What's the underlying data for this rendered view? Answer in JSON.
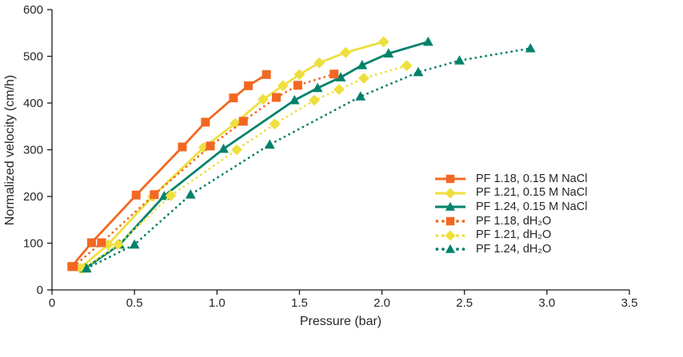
{
  "figure": {
    "background": "#ffffff",
    "text_color": "#262626",
    "axis_color": "#1a1a1a"
  },
  "chart_data": {
    "type": "line",
    "title": "",
    "xlabel": "Pressure (bar)",
    "ylabel": "Normalized velocity (cm/h)",
    "xlim": [
      0,
      3.5
    ],
    "ylim": [
      0,
      600
    ],
    "grid": false,
    "legend_position": "right-center",
    "x_ticks": {
      "values": [
        0,
        0.5,
        1.0,
        1.5,
        2.0,
        2.5,
        3.0,
        3.5
      ],
      "labels": [
        "0",
        "0.5",
        "1.0",
        "1.5",
        "2.0",
        "2.5",
        "3.0",
        "3.5"
      ]
    },
    "y_ticks": {
      "values": [
        0,
        100,
        200,
        300,
        400,
        500,
        600
      ],
      "labels": [
        "0",
        "100",
        "200",
        "300",
        "400",
        "500",
        "600"
      ]
    },
    "series": [
      {
        "name": "PF 1.18, 0.15 M NaCl",
        "color": "#F26822",
        "line_style": "solid",
        "marker": "square",
        "points": [
          [
            0.12,
            50
          ],
          [
            0.24,
            101
          ],
          [
            0.51,
            203
          ],
          [
            0.79,
            306
          ],
          [
            0.93,
            359
          ],
          [
            1.1,
            411
          ],
          [
            1.19,
            437
          ],
          [
            1.3,
            461
          ]
        ]
      },
      {
        "name": "PF 1.21, 0.15 M NaCl",
        "color": "#EEDF3E",
        "line_style": "solid",
        "marker": "diamond",
        "points": [
          [
            0.17,
            46
          ],
          [
            0.34,
            97
          ],
          [
            0.61,
            200
          ],
          [
            0.92,
            305
          ],
          [
            1.11,
            356
          ],
          [
            1.28,
            408
          ],
          [
            1.4,
            437
          ],
          [
            1.5,
            461
          ],
          [
            1.62,
            486
          ],
          [
            1.78,
            508
          ],
          [
            2.01,
            531
          ]
        ]
      },
      {
        "name": "PF 1.24, 0.15 M NaCl",
        "color": "#00826B",
        "line_style": "solid",
        "marker": "triangle",
        "points": [
          [
            0.2,
            46
          ],
          [
            0.41,
            97
          ],
          [
            0.68,
            201
          ],
          [
            1.04,
            302
          ],
          [
            1.47,
            406
          ],
          [
            1.61,
            432
          ],
          [
            1.75,
            455
          ],
          [
            1.88,
            481
          ],
          [
            2.04,
            506
          ],
          [
            2.28,
            531
          ]
        ]
      },
      {
        "name": "PF 1.18, dH₂O",
        "color": "#F26822",
        "line_style": "dotted",
        "marker": "square",
        "points": [
          [
            0.13,
            50
          ],
          [
            0.3,
            101
          ],
          [
            0.62,
            204
          ],
          [
            0.96,
            308
          ],
          [
            1.16,
            361
          ],
          [
            1.36,
            412
          ],
          [
            1.49,
            438
          ],
          [
            1.71,
            462
          ]
        ]
      },
      {
        "name": "PF 1.21, dH₂O",
        "color": "#EEDF3E",
        "line_style": "dotted",
        "marker": "diamond",
        "points": [
          [
            0.19,
            46
          ],
          [
            0.4,
            97
          ],
          [
            0.72,
            202
          ],
          [
            1.12,
            300
          ],
          [
            1.35,
            355
          ],
          [
            1.59,
            406
          ],
          [
            1.74,
            429
          ],
          [
            1.89,
            453
          ],
          [
            2.15,
            480
          ]
        ]
      },
      {
        "name": "PF 1.24, dH₂O",
        "color": "#00826B",
        "line_style": "dotted",
        "marker": "triangle",
        "points": [
          [
            0.21,
            46
          ],
          [
            0.5,
            97
          ],
          [
            0.84,
            204
          ],
          [
            1.32,
            311
          ],
          [
            1.87,
            414
          ],
          [
            2.22,
            466
          ],
          [
            2.47,
            491
          ],
          [
            2.9,
            517
          ]
        ]
      }
    ]
  }
}
